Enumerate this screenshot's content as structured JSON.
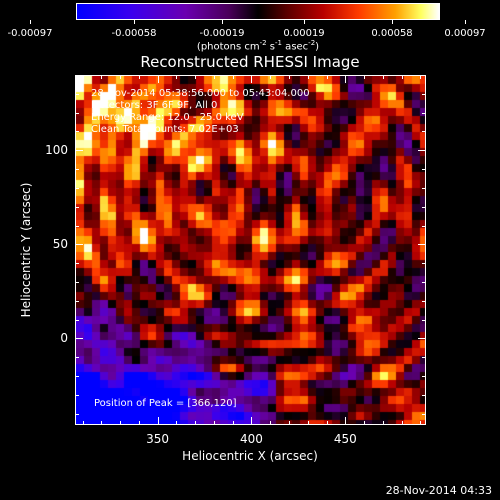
{
  "colorbar": {
    "ticks": [
      "-0.00097",
      "-0.00058",
      "-0.00019",
      "0.00019",
      "0.00058",
      "0.00097"
    ],
    "units_html": "(photons cm<sup style='font-size:7px'>-2</sup> s<sup style='font-size:7px'>-1</sup> asec<sup style='font-size:7px'>-2</sup>)"
  },
  "chart_data": {
    "type": "heatmap",
    "title": "Reconstructed RHESSI Image",
    "xlabel": "Heliocentric X (arcsec)",
    "ylabel": "Heliocentric Y (arcsec)",
    "xlim": [
      306,
      493
    ],
    "ylim": [
      -46,
      140
    ],
    "xticks": [
      350,
      400,
      450
    ],
    "yticks": [
      0,
      50,
      100
    ],
    "value_range": [
      -0.00097,
      0.00097
    ],
    "peak": [
      366,
      120
    ],
    "annotations": [
      "28-Nov-2014 05:38:56.000 to 05:43:04.000",
      "Detectors: 3F 6F 9F, All 0",
      "Energy Range: 12.0 - 25.0 keV",
      "Clean    Total counts: 7.02E+03"
    ],
    "peak_label": "Position of Peak = [366,120]"
  },
  "footer": {
    "timestamp": "28-Nov-2014 04:33"
  }
}
